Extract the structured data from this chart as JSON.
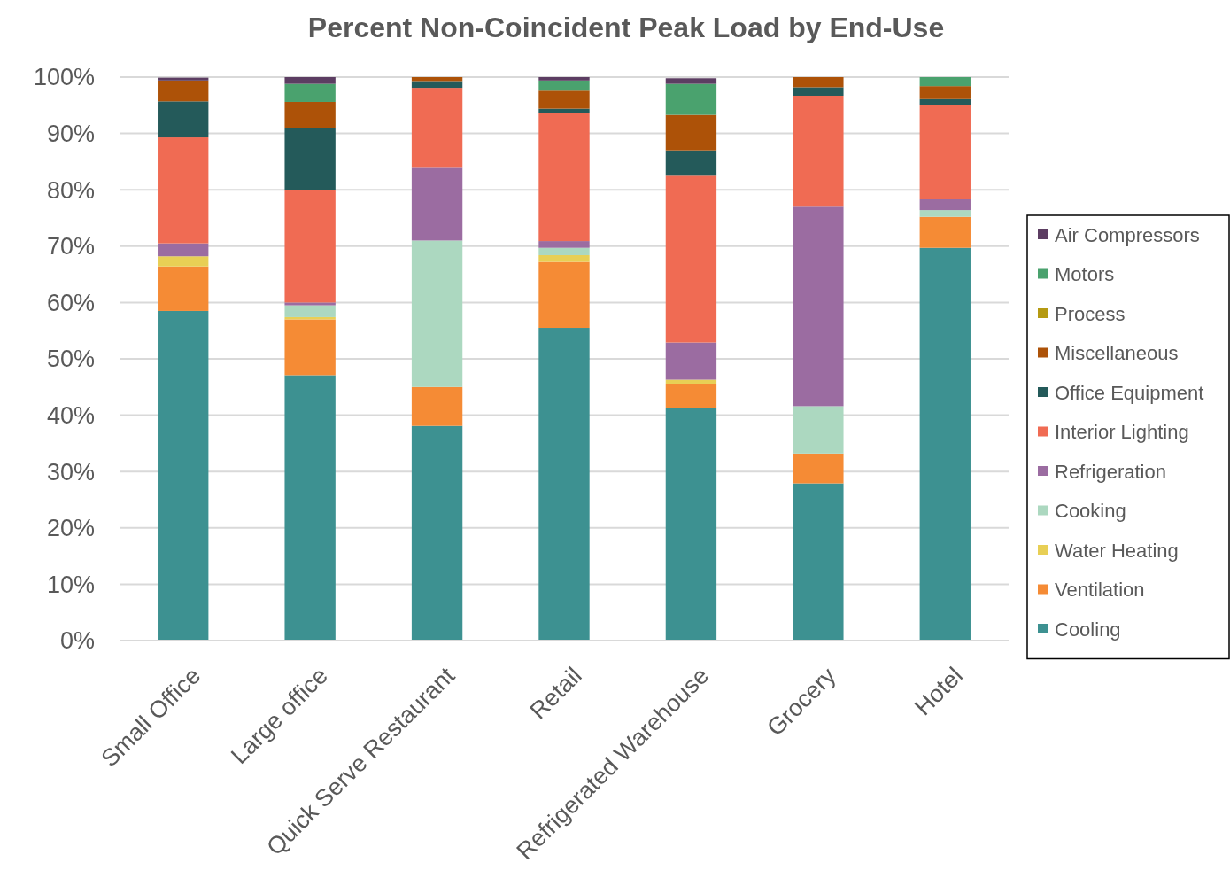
{
  "chart_data": {
    "type": "bar",
    "title": "Percent Non-Coincident Peak Load by End-Use",
    "stacked": true,
    "grid": "y",
    "legend": "right",
    "categories": [
      "Small Office",
      "Large office",
      "Quick Serve Restaurant",
      "Retail",
      "Refrigerated Warehouse",
      "Grocery",
      "Hotel"
    ],
    "ylim": [
      0,
      100
    ],
    "yticks": [
      {
        "value": 0,
        "label": "0%"
      },
      {
        "value": 10,
        "label": "10%"
      },
      {
        "value": 20,
        "label": "20%"
      },
      {
        "value": 30,
        "label": "30%"
      },
      {
        "value": 40,
        "label": "40%"
      },
      {
        "value": 50,
        "label": "50%"
      },
      {
        "value": 60,
        "label": "60%"
      },
      {
        "value": 70,
        "label": "70%"
      },
      {
        "value": 80,
        "label": "80%"
      },
      {
        "value": 90,
        "label": "90%"
      },
      {
        "value": 100,
        "label": "100%"
      }
    ],
    "series": [
      {
        "name": "Cooling",
        "color": "#3d9191",
        "values": [
          58.5,
          47.1,
          38.1,
          55.5,
          41.3,
          27.9,
          69.7
        ]
      },
      {
        "name": "Ventilation",
        "color": "#f58b35",
        "values": [
          7.9,
          9.9,
          6.9,
          11.7,
          4.3,
          5.3,
          5.5
        ]
      },
      {
        "name": "Water Heating",
        "color": "#e8cf55",
        "values": [
          1.8,
          0.4,
          0,
          1.2,
          0.7,
          0,
          0
        ]
      },
      {
        "name": "Cooking",
        "color": "#acd8c0",
        "values": [
          null,
          2.1,
          26.0,
          1.3,
          null,
          8.4,
          1.2
        ]
      },
      {
        "name": "Refrigeration",
        "color": "#9b6ca1",
        "values": [
          2.3,
          0.5,
          12.9,
          1.2,
          6.6,
          35.4,
          1.9
        ]
      },
      {
        "name": "Interior Lighting",
        "color": "#f06b53",
        "values": [
          18.8,
          19.9,
          14.2,
          22.7,
          29.6,
          19.7,
          16.7
        ]
      },
      {
        "name": "Office Equipment",
        "color": "#245a5a",
        "values": [
          6.4,
          11.0,
          1.2,
          0.8,
          4.5,
          1.5,
          1.1
        ]
      },
      {
        "name": "Miscellaneous",
        "color": "#ad5208",
        "values": [
          3.7,
          4.7,
          0.7,
          3.2,
          6.3,
          1.8,
          2.3
        ]
      },
      {
        "name": "Process",
        "color": "#b59a12",
        "values": [
          0,
          0,
          0,
          0,
          0,
          0,
          0
        ]
      },
      {
        "name": "Motors",
        "color": "#4aa26e",
        "values": [
          0,
          3.2,
          0,
          1.8,
          5.5,
          0,
          1.6
        ]
      },
      {
        "name": "Air Compressors",
        "color": "#5c3d62",
        "values": [
          0.5,
          1.2,
          0,
          0.6,
          1.0,
          0,
          0
        ]
      }
    ]
  }
}
